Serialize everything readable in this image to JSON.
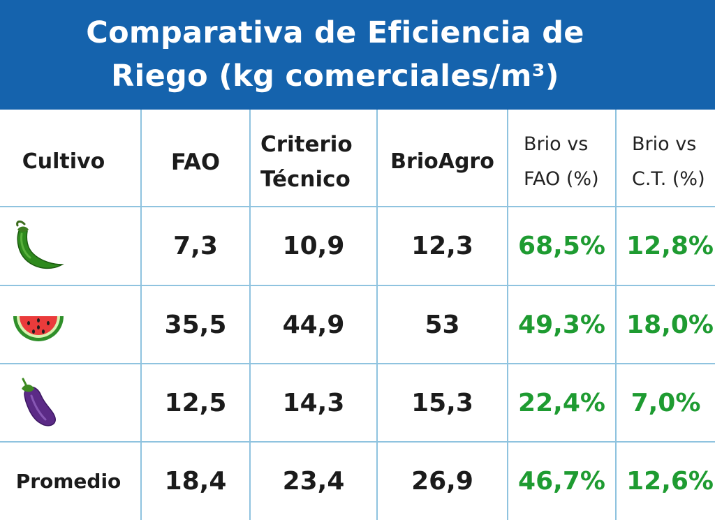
{
  "title": {
    "line1": "Comparativa de Eficiencia de",
    "line2": "Riego (kg comerciales/m³)"
  },
  "chart_data": {
    "type": "table",
    "title": "Comparativa de Eficiencia de Riego (kg comerciales/m³)",
    "columns": [
      "Cultivo",
      "FAO",
      "Criterio Técnico",
      "BrioAgro",
      "Brio vs FAO (%)",
      "Brio vs C.T. (%)"
    ],
    "header": {
      "cultivo": "Cultivo",
      "fao": "FAO",
      "ct_1": "Criterio",
      "ct_2": "Técnico",
      "brio": "BrioAgro",
      "bvf_1": "Brio vs",
      "bvf_2": "FAO (%)",
      "bvc_1": "Brio vs",
      "bvc_2": "C.T. (%)"
    },
    "rows": [
      {
        "icon": "chili-pepper-icon",
        "fao": "7,3",
        "ct": "10,9",
        "brio": "12,3",
        "vs_fao": "68,5%",
        "vs_ct": "12,8%"
      },
      {
        "icon": "watermelon-icon",
        "fao": "35,5",
        "ct": "44,9",
        "brio": "53",
        "vs_fao": "49,3%",
        "vs_ct": "18,0%"
      },
      {
        "icon": "eggplant-icon",
        "fao": "12,5",
        "ct": "14,3",
        "brio": "15,3",
        "vs_fao": "22,4%",
        "vs_ct": "7,0%"
      },
      {
        "label": "Promedio",
        "fao": "18,4",
        "ct": "23,4",
        "brio": "26,9",
        "vs_fao": "46,7%",
        "vs_ct": "12,6%"
      }
    ]
  },
  "colors": {
    "title_bg": "#1563ad",
    "title_text": "#ffffff",
    "grid_line": "#8fc3df",
    "positive_pct": "#1e9b31"
  }
}
